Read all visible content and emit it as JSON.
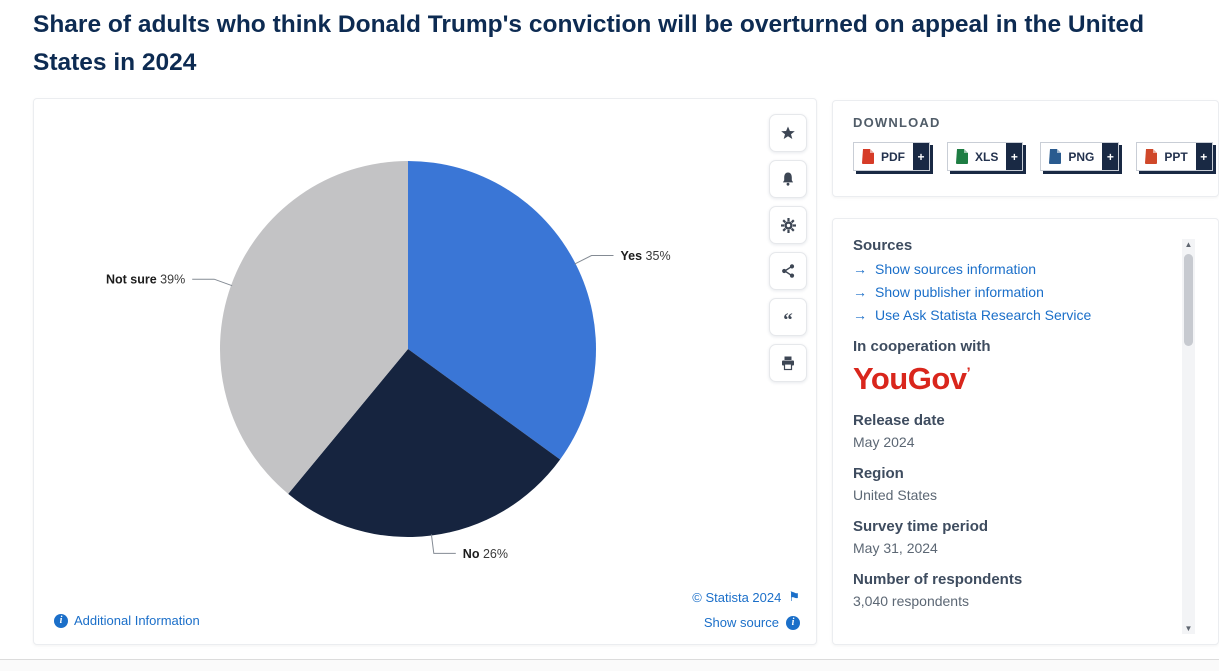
{
  "page": {
    "title": "Share of adults who think Donald Trump's conviction will be overturned on appeal in the United States in 2024"
  },
  "chart_data": {
    "type": "pie",
    "title": "Share of adults who think Donald Trump's conviction will be overturned on appeal in the United States in 2024",
    "categories": [
      "Yes",
      "No",
      "Not sure"
    ],
    "values": [
      35,
      26,
      39
    ],
    "unit": "%",
    "slice_colors": [
      "#3a76d6",
      "#16243f",
      "#c3c3c5"
    ],
    "start_angle": "top",
    "direction": "clockwise",
    "legend_position": "none",
    "labels": [
      "Yes 35%",
      "No 26%",
      "Not sure 39%"
    ]
  },
  "chart_footer": {
    "additional_information": "Additional Information",
    "copyright": "© Statista 2024",
    "show_source": "Show source"
  },
  "toolbar": {
    "buttons": [
      {
        "name": "favorite",
        "icon": "star-icon"
      },
      {
        "name": "alert",
        "icon": "bell-icon"
      },
      {
        "name": "settings",
        "icon": "gear-icon"
      },
      {
        "name": "share",
        "icon": "share-icon"
      },
      {
        "name": "cite",
        "icon": "quote-icon"
      },
      {
        "name": "print",
        "icon": "print-icon"
      }
    ],
    "quote_glyph": "“"
  },
  "download": {
    "heading": "DOWNLOAD",
    "plus_label": "+",
    "formats": [
      {
        "label": "PDF",
        "color": "#d63b27"
      },
      {
        "label": "XLS",
        "color": "#1e7d43"
      },
      {
        "label": "PNG",
        "color": "#2a5b8f"
      },
      {
        "label": "PPT",
        "color": "#d0482a"
      }
    ]
  },
  "details": {
    "sources_heading": "Sources",
    "source_links": [
      {
        "label": "Show sources information"
      },
      {
        "label": "Show publisher information"
      },
      {
        "label": "Use Ask Statista Research Service"
      }
    ],
    "link_arrow": "→",
    "cooperation_heading": "In cooperation with",
    "partner_logo": "YouGov",
    "partner_mark": "’",
    "fields": [
      {
        "label": "Release date",
        "value": "May 2024"
      },
      {
        "label": "Region",
        "value": "United States"
      },
      {
        "label": "Survey time period",
        "value": "May 31, 2024"
      },
      {
        "label": "Number of respondents",
        "value": "3,040 respondents"
      }
    ]
  },
  "colors": {
    "title_navy": "#0d2b52",
    "link_blue": "#1b6fc9",
    "download_dark": "#192944",
    "partner_red": "#d9261c"
  },
  "icons": {
    "flag": "⚑",
    "info": "i",
    "scroll_up": "▲",
    "scroll_down": "▼"
  }
}
